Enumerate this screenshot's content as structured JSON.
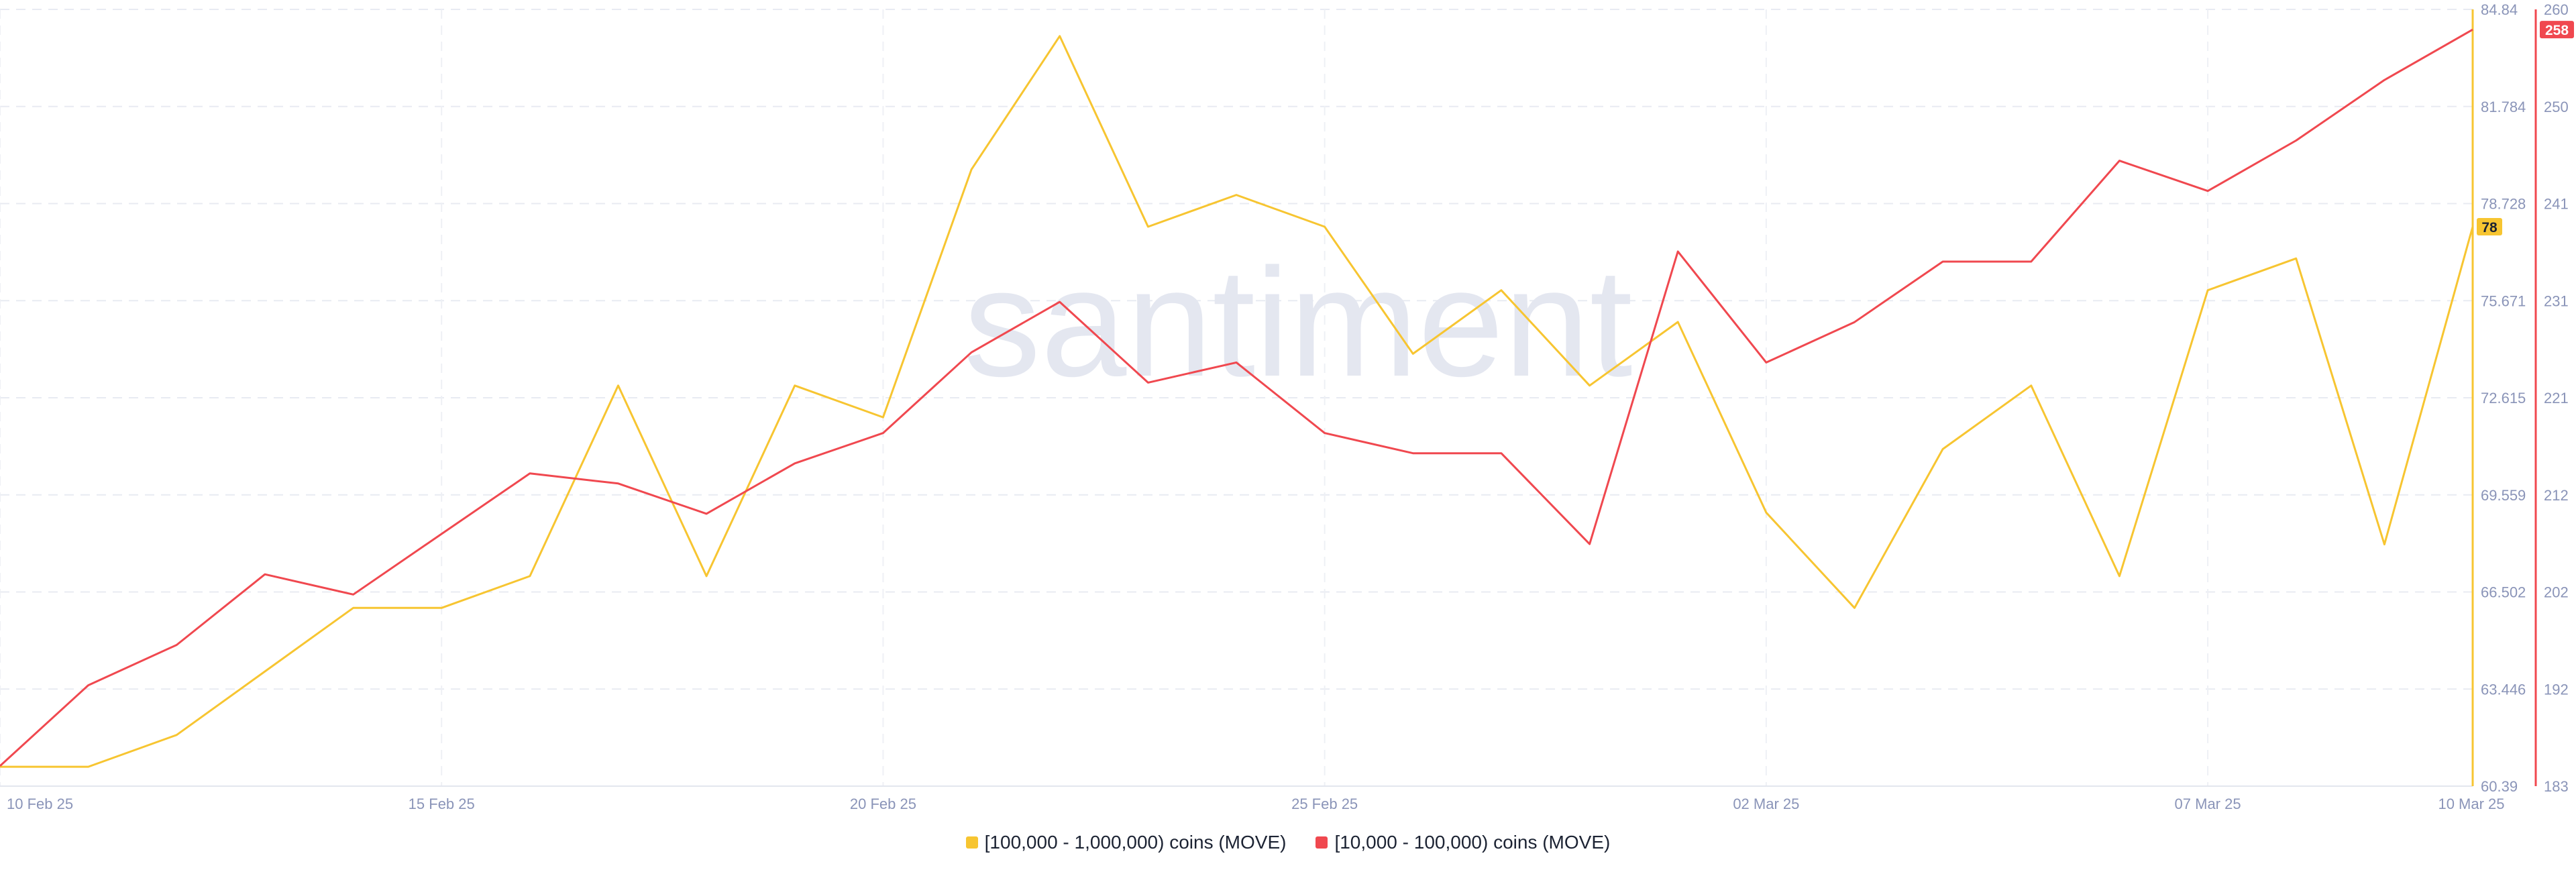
{
  "chart_data": {
    "type": "line",
    "x": [
      "10 Feb 25",
      "11 Feb 25",
      "12 Feb 25",
      "13 Feb 25",
      "14 Feb 25",
      "15 Feb 25",
      "16 Feb 25",
      "17 Feb 25",
      "18 Feb 25",
      "19 Feb 25",
      "20 Feb 25",
      "21 Feb 25",
      "22 Feb 25",
      "23 Feb 25",
      "24 Feb 25",
      "25 Feb 25",
      "26 Feb 25",
      "27 Feb 25",
      "28 Feb 25",
      "01 Mar 25",
      "02 Mar 25",
      "03 Mar 25",
      "04 Mar 25",
      "05 Mar 25",
      "06 Mar 25",
      "07 Mar 25",
      "08 Mar 25",
      "09 Mar 25",
      "10 Mar 25"
    ],
    "x_ticks": [
      "10 Feb 25",
      "15 Feb 25",
      "20 Feb 25",
      "25 Feb 25",
      "02 Mar 25",
      "07 Mar 25",
      "10 Mar 25"
    ],
    "series": [
      {
        "name": "[100,000  - 1,000,000) coins (MOVE)",
        "axis": "left",
        "color": "#f7c531",
        "values": [
          61,
          61,
          62,
          64,
          66,
          66,
          67,
          73,
          67,
          73,
          72,
          79.8,
          84,
          78,
          79,
          78,
          74,
          76,
          73,
          75,
          69,
          66,
          71,
          73,
          67,
          76,
          77,
          68,
          78
        ]
      },
      {
        "name": "[10,000 - 100,000) coins (MOVE)",
        "axis": "right",
        "color": "#f0484f",
        "values": [
          185,
          193,
          197,
          204,
          202,
          208,
          214,
          213,
          210,
          215,
          218,
          226,
          231,
          223,
          225,
          218,
          216,
          216,
          207,
          236,
          225,
          229,
          235,
          235,
          245,
          242,
          247,
          253,
          258
        ]
      }
    ],
    "y_left": {
      "ticks": [
        "84.84",
        "81.784",
        "78.728",
        "75.671",
        "72.615",
        "69.559",
        "66.502",
        "63.446",
        "60.39"
      ],
      "min": 60.39,
      "max": 84.84,
      "color": "#f7c531"
    },
    "y_right": {
      "ticks": [
        "260",
        "250",
        "241",
        "231",
        "221",
        "212",
        "202",
        "192",
        "183"
      ],
      "min": 183,
      "max": 260,
      "color": "#f0484f"
    },
    "last_value_labels": {
      "left": "78",
      "right": "258"
    },
    "watermark": "santiment",
    "grid": true,
    "legend_position": "bottom-center"
  }
}
